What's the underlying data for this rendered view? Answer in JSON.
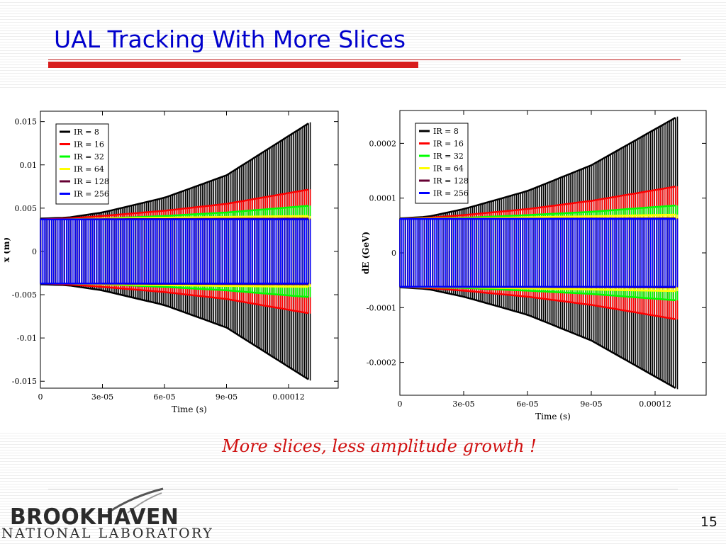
{
  "slide": {
    "title": "UAL Tracking With More Slices",
    "caption": "More slices, less amplitude growth !",
    "page_number": "15",
    "logo_main": "BROOKHAVEN",
    "logo_sub": "NATIONAL LABORATORY"
  },
  "colors": {
    "title": "#0000cc",
    "accent_red": "#d81c1c",
    "caption": "#d01010"
  },
  "chart_data": [
    {
      "type": "line",
      "xlabel": "Time (s)",
      "ylabel": "x (m)",
      "xlim": [
        0,
        0.000144
      ],
      "ylim": [
        -0.0158,
        0.0162
      ],
      "x_ticks": [
        0,
        3e-05,
        6e-05,
        9e-05,
        0.00012
      ],
      "x_tick_labels": [
        "0",
        "3e-05",
        "6e-05",
        "9e-05",
        "0.00012"
      ],
      "y_ticks": [
        -0.015,
        -0.01,
        -0.005,
        0,
        0.005,
        0.01,
        0.015
      ],
      "y_tick_labels": [
        "-0.015",
        "-0.01",
        "-0.005",
        "0",
        "0.005",
        "0.01",
        "0.015"
      ],
      "legend_position": "top-left",
      "series": [
        {
          "name": "IR = 8",
          "color": "#000000",
          "t": [
            0,
            1.3e-05,
            3e-05,
            6e-05,
            9e-05,
            0.000131
          ],
          "amplitude": [
            0.0038,
            0.0039,
            0.0045,
            0.0062,
            0.0088,
            0.015
          ]
        },
        {
          "name": "IR = 16",
          "color": "#ff0000",
          "t": [
            0,
            1.3e-05,
            3e-05,
            6e-05,
            9e-05,
            0.000131
          ],
          "amplitude": [
            0.0037,
            0.0038,
            0.0041,
            0.0047,
            0.0055,
            0.0072
          ]
        },
        {
          "name": "IR = 32",
          "color": "#00ff00",
          "t": [
            0,
            1.3e-05,
            3e-05,
            6e-05,
            9e-05,
            0.000131
          ],
          "amplitude": [
            0.0037,
            0.0037,
            0.0038,
            0.0041,
            0.0045,
            0.0053
          ]
        },
        {
          "name": "IR = 64",
          "color": "#ffff00",
          "t": [
            0,
            1.3e-05,
            3e-05,
            6e-05,
            9e-05,
            0.000131
          ],
          "amplitude": [
            0.0037,
            0.0037,
            0.0038,
            0.0039,
            0.004,
            0.0041
          ]
        },
        {
          "name": "IR = 128",
          "color": "#660033",
          "t": [
            0,
            0.000131
          ],
          "amplitude": [
            0.0037,
            0.0038
          ]
        },
        {
          "name": "IR = 256",
          "color": "#0000ff",
          "t": [
            0,
            0.000131
          ],
          "amplitude": [
            0.0037,
            0.0037
          ]
        }
      ]
    },
    {
      "type": "line",
      "xlabel": "Time (s)",
      "ylabel": "dE (GeV)",
      "xlim": [
        0,
        0.000144
      ],
      "ylim": [
        -0.00026,
        0.00026
      ],
      "x_ticks": [
        0,
        3e-05,
        6e-05,
        9e-05,
        0.00012
      ],
      "x_tick_labels": [
        "0",
        "3e-05",
        "6e-05",
        "9e-05",
        "0.00012"
      ],
      "y_ticks": [
        -0.0002,
        -0.0001,
        0,
        0.0001,
        0.0002
      ],
      "y_tick_labels": [
        "-0.0002",
        "-0.0001",
        "0",
        "0.0001",
        "0.0002"
      ],
      "legend_position": "top-left",
      "series": [
        {
          "name": "IR = 8",
          "color": "#000000",
          "t": [
            0,
            1.3e-05,
            3e-05,
            6e-05,
            9e-05,
            0.000131
          ],
          "amplitude": [
            6.3e-05,
            6.6e-05,
            8e-05,
            0.000113,
            0.00016,
            0.00025
          ]
        },
        {
          "name": "IR = 16",
          "color": "#ff0000",
          "t": [
            0,
            1.3e-05,
            3e-05,
            6e-05,
            9e-05,
            0.000131
          ],
          "amplitude": [
            6.2e-05,
            6.4e-05,
            6.9e-05,
            8e-05,
            9.5e-05,
            0.000122
          ]
        },
        {
          "name": "IR = 32",
          "color": "#00ff00",
          "t": [
            0,
            1.3e-05,
            3e-05,
            6e-05,
            9e-05,
            0.000131
          ],
          "amplitude": [
            6.2e-05,
            6.3e-05,
            6.4e-05,
            6.9e-05,
            7.5e-05,
            8.7e-05
          ]
        },
        {
          "name": "IR = 64",
          "color": "#ffff00",
          "t": [
            0,
            1.3e-05,
            3e-05,
            6e-05,
            9e-05,
            0.000131
          ],
          "amplitude": [
            6.2e-05,
            6.3e-05,
            6.3e-05,
            6.5e-05,
            6.7e-05,
            7e-05
          ]
        },
        {
          "name": "IR = 128",
          "color": "#660033",
          "t": [
            0,
            0.000131
          ],
          "amplitude": [
            6.2e-05,
            6.3e-05
          ]
        },
        {
          "name": "IR = 256",
          "color": "#0000ff",
          "t": [
            0,
            0.000131
          ],
          "amplitude": [
            6.2e-05,
            6.2e-05
          ]
        }
      ]
    }
  ]
}
